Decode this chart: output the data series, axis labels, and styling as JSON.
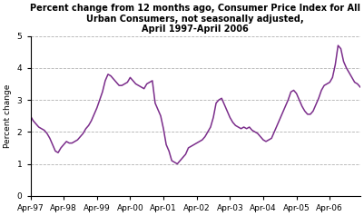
{
  "title_line1": "Percent change from 12 months ago, Consumer Price Index for All",
  "title_line2": "Urban Consumers, not seasonally adjusted,",
  "title_line3": "April 1997-April 2006",
  "ylabel": "Percent change",
  "xtick_labels": [
    "Apr-97",
    "Apr-98",
    "Apr-99",
    "Apr-00",
    "Apr-01",
    "Apr-02",
    "Apr-03",
    "Apr-04",
    "Apr-05",
    "Apr-06"
  ],
  "ylim": [
    0,
    5
  ],
  "yticks": [
    0,
    1,
    2,
    3,
    4,
    5
  ],
  "line_color": "#7B2D8B",
  "background_color": "#ffffff",
  "grid_color": "#aaaaaa",
  "values": [
    2.5,
    2.35,
    2.25,
    2.15,
    2.1,
    2.05,
    1.95,
    1.8,
    1.6,
    1.4,
    1.35,
    1.5,
    1.6,
    1.7,
    1.65,
    1.65,
    1.7,
    1.75,
    1.85,
    1.95,
    2.1,
    2.2,
    2.35,
    2.55,
    2.75,
    3.0,
    3.25,
    3.6,
    3.8,
    3.75,
    3.65,
    3.55,
    3.45,
    3.45,
    3.5,
    3.55,
    3.7,
    3.6,
    3.5,
    3.45,
    3.4,
    3.35,
    3.5,
    3.55,
    3.6,
    2.9,
    2.7,
    2.5,
    2.1,
    1.6,
    1.4,
    1.1,
    1.05,
    1.0,
    1.1,
    1.2,
    1.3,
    1.5,
    1.55,
    1.6,
    1.65,
    1.7,
    1.75,
    1.85,
    2.0,
    2.15,
    2.45,
    2.9,
    3.0,
    3.05,
    2.85,
    2.65,
    2.45,
    2.3,
    2.2,
    2.15,
    2.1,
    2.15,
    2.1,
    2.15,
    2.05,
    2.0,
    1.95,
    1.85,
    1.75,
    1.7,
    1.75,
    1.8,
    2.0,
    2.2,
    2.4,
    2.6,
    2.8,
    3.0,
    3.25,
    3.3,
    3.2,
    3.0,
    2.8,
    2.65,
    2.55,
    2.55,
    2.65,
    2.85,
    3.05,
    3.3,
    3.45,
    3.5,
    3.55,
    3.7,
    4.1,
    4.7,
    4.6,
    4.2,
    4.0,
    3.85,
    3.7,
    3.55,
    3.5,
    3.4
  ]
}
